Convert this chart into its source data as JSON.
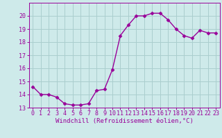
{
  "x": [
    0,
    1,
    2,
    3,
    4,
    5,
    6,
    7,
    8,
    9,
    10,
    11,
    12,
    13,
    14,
    15,
    16,
    17,
    18,
    19,
    20,
    21,
    22,
    23
  ],
  "y": [
    14.6,
    14.0,
    14.0,
    13.8,
    13.3,
    13.2,
    13.2,
    13.3,
    14.3,
    14.4,
    15.9,
    18.5,
    19.3,
    20.0,
    20.0,
    20.2,
    20.2,
    19.7,
    19.0,
    18.5,
    18.3,
    18.9,
    18.7,
    18.7
  ],
  "line_color": "#990099",
  "marker": "D",
  "markersize": 2.5,
  "linewidth": 1.0,
  "bg_color": "#ceeaea",
  "grid_color": "#aacece",
  "xlabel": "Windchill (Refroidissement éolien,°C)",
  "xlabel_color": "#990099",
  "xlabel_fontsize": 6.5,
  "tick_color": "#990099",
  "tick_fontsize": 6,
  "ylim": [
    13,
    21
  ],
  "xlim": [
    -0.5,
    23.5
  ],
  "yticks": [
    13,
    14,
    15,
    16,
    17,
    18,
    19,
    20
  ],
  "xticks": [
    0,
    1,
    2,
    3,
    4,
    5,
    6,
    7,
    8,
    9,
    10,
    11,
    12,
    13,
    14,
    15,
    16,
    17,
    18,
    19,
    20,
    21,
    22,
    23
  ]
}
